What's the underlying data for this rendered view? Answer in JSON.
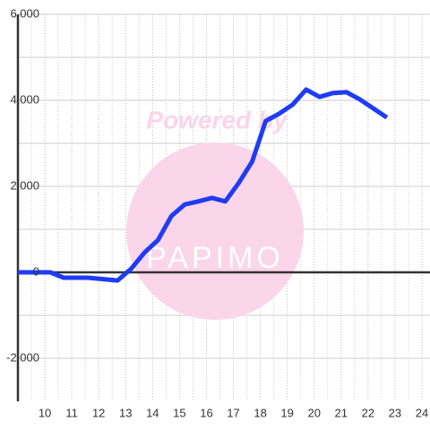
{
  "chart_data": {
    "type": "line",
    "x": [
      9.0,
      10.2,
      10.7,
      11.6,
      12.7,
      13.2,
      13.7,
      14.2,
      14.7,
      15.2,
      15.7,
      16.2,
      16.7,
      17.2,
      17.7,
      18.2,
      18.7,
      19.2,
      19.7,
      20.2,
      20.7,
      21.2,
      21.7,
      22.2,
      22.7
    ],
    "series": [
      {
        "color": "#1f3cf5",
        "values": [
          0,
          0,
          -125,
          -125,
          -190,
          80,
          460,
          750,
          1310,
          1580,
          1650,
          1730,
          1650,
          2080,
          2580,
          3520,
          3690,
          3900,
          4250,
          4080,
          4170,
          4190,
          4020,
          3810,
          3600
        ]
      }
    ],
    "xlim": [
      9,
      24.3
    ],
    "ylim": [
      -3000,
      6000
    ],
    "xticks": [
      10,
      11,
      12,
      13,
      14,
      15,
      16,
      17,
      18,
      19,
      20,
      21,
      22,
      23,
      24
    ],
    "yticks": [
      {
        "value": -2000,
        "label": "-2,000"
      },
      0,
      {
        "value": 2000,
        "label": "2,000"
      },
      {
        "value": 4000,
        "label": "4,000"
      },
      {
        "value": 6000,
        "label": "6,000"
      }
    ],
    "x_minor_ticks": [
      9.5,
      10.5,
      11.5,
      12.5,
      13.5,
      14.5,
      15.5,
      16.5,
      17.5,
      18.5,
      19.5,
      20.5,
      21.5,
      22.5,
      23.5
    ],
    "y_minor_ticks": [
      -1000,
      1000,
      3000,
      5000
    ],
    "grid": true,
    "watermark": {
      "text": "Powered by",
      "logo": "PAPIMO"
    }
  }
}
